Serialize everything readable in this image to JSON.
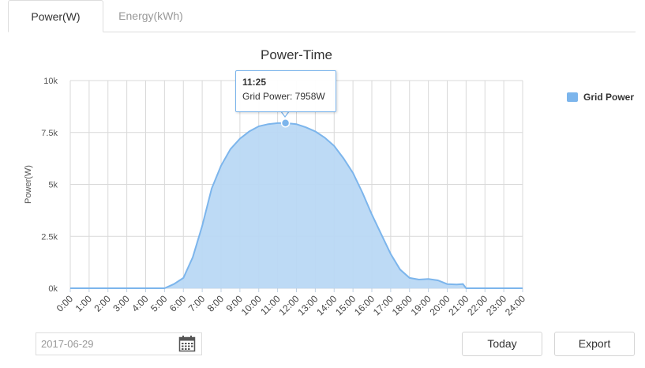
{
  "tabs": [
    {
      "label": "Power(W)",
      "active": true
    },
    {
      "label": "Energy(kWh)",
      "active": false
    }
  ],
  "date_input": {
    "value": "2017-06-29"
  },
  "icons": {
    "calendar": "calendar-icon"
  },
  "buttons": {
    "today": "Today",
    "export": "Export"
  },
  "tooltip": {
    "time": "11:25",
    "text": "Grid Power: 7958W"
  },
  "colors": {
    "series": "#7cb5ec",
    "series_fill": "#b9d8f4",
    "grid": "#d9d9d9"
  },
  "chart_data": {
    "type": "area",
    "title": "Power-Time",
    "ylabel": "Power(W)",
    "xlabel": "",
    "ylim": [
      0,
      10000
    ],
    "yticks": [
      0,
      2500,
      5000,
      7500,
      10000
    ],
    "ytick_labels": [
      "0k",
      "2.5k",
      "5k",
      "7.5k",
      "10k"
    ],
    "xticks": [
      "0:00",
      "1:00",
      "2:00",
      "3:00",
      "4:00",
      "5:00",
      "6:00",
      "7:00",
      "8:00",
      "9:00",
      "10:00",
      "11:00",
      "12:00",
      "13:00",
      "14:00",
      "15:00",
      "16:00",
      "17:00",
      "18:00",
      "19:00",
      "20:00",
      "21:00",
      "22:00",
      "23:00",
      "24:00"
    ],
    "legend": "right",
    "series": [
      {
        "name": "Grid Power",
        "x": [
          "0:00",
          "5:00",
          "5:30",
          "6:00",
          "6:30",
          "7:00",
          "7:30",
          "8:00",
          "8:30",
          "9:00",
          "9:30",
          "10:00",
          "10:30",
          "11:00",
          "11:25",
          "12:00",
          "12:30",
          "13:00",
          "13:30",
          "14:00",
          "14:30",
          "15:00",
          "15:30",
          "16:00",
          "16:30",
          "17:00",
          "17:30",
          "18:00",
          "18:30",
          "19:00",
          "19:30",
          "20:00",
          "20:30",
          "20:50",
          "21:00",
          "24:00"
        ],
        "values": [
          0,
          0,
          200,
          500,
          1500,
          3000,
          4800,
          5900,
          6700,
          7200,
          7550,
          7800,
          7900,
          7950,
          7958,
          7900,
          7750,
          7550,
          7250,
          6850,
          6250,
          5550,
          4600,
          3550,
          2600,
          1650,
          900,
          500,
          420,
          450,
          380,
          200,
          180,
          200,
          0,
          0
        ]
      }
    ]
  }
}
